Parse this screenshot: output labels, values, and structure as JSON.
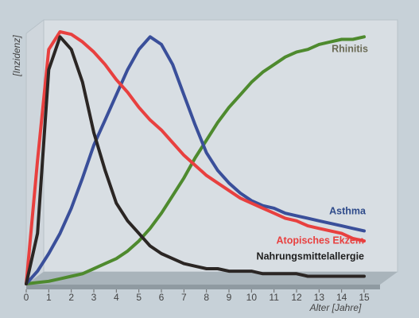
{
  "chart_data": {
    "type": "line",
    "ylabel": "[Inzidenz]",
    "xlabel": "Alter [Jahre]",
    "x": [
      0,
      0.5,
      1,
      1.5,
      2,
      2.5,
      3,
      3.5,
      4,
      4.5,
      5,
      5.5,
      6,
      6.5,
      7,
      7.5,
      8,
      8.5,
      9,
      9.5,
      10,
      10.5,
      11,
      11.5,
      12,
      12.5,
      13,
      13.5,
      14,
      14.5,
      15
    ],
    "xlim": [
      0,
      15
    ],
    "xticks": [
      0,
      1,
      2,
      3,
      4,
      5,
      6,
      7,
      8,
      9,
      10,
      11,
      12,
      13,
      14,
      15
    ],
    "ylim": [
      0,
      100
    ],
    "series": [
      {
        "name": "Rhinitis",
        "color": "#4e8a2e",
        "label_color": "#6b6b55",
        "values": [
          0,
          0.5,
          1,
          2,
          3,
          4,
          6,
          8,
          10,
          13,
          17,
          22,
          28,
          35,
          42,
          50,
          57,
          64,
          70,
          75,
          80,
          84,
          87,
          90,
          92,
          93,
          95,
          96,
          97,
          97,
          98
        ]
      },
      {
        "name": "Asthma",
        "color": "#3a4f9a",
        "label_color": "#2e4a8a",
        "values": [
          0,
          5,
          12,
          20,
          30,
          42,
          55,
          65,
          75,
          85,
          93,
          98,
          95,
          87,
          75,
          63,
          52,
          45,
          40,
          36,
          33,
          31,
          30,
          28,
          27,
          26,
          25,
          24,
          23,
          22,
          21
        ]
      },
      {
        "name": "Atopisches Ekzem",
        "color": "#e8403f",
        "label_color": "#e8403f",
        "values": [
          0,
          49,
          93,
          100,
          99,
          96,
          92,
          87,
          81,
          76,
          70,
          65,
          61,
          56,
          51,
          47,
          43,
          40,
          37,
          34,
          32,
          30,
          28,
          26,
          25,
          23,
          22,
          21,
          20,
          18,
          17
        ]
      },
      {
        "name": "Nahrungsmittelallergie",
        "color": "#2b2624",
        "label_color": "#1e1e1e",
        "values": [
          0,
          20,
          85,
          98,
          93,
          80,
          60,
          45,
          32,
          25,
          20,
          15,
          12,
          10,
          8,
          7,
          6,
          6,
          5,
          5,
          5,
          4,
          4,
          4,
          4,
          3,
          3,
          3,
          3,
          3,
          3
        ]
      }
    ]
  }
}
